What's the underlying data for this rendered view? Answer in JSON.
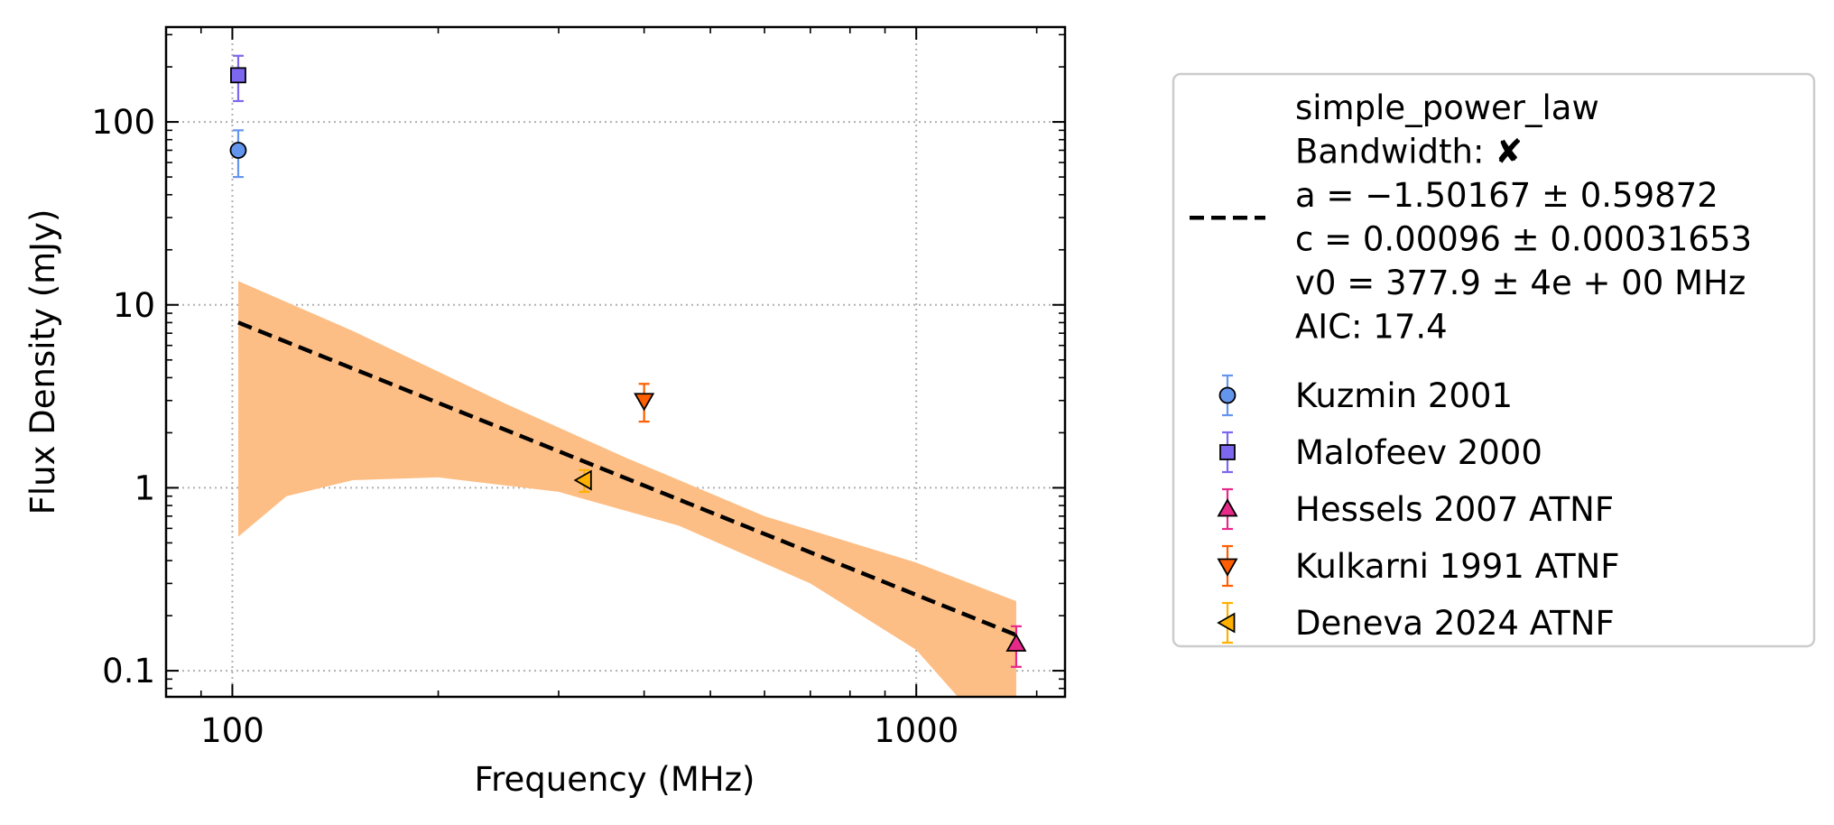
{
  "chart_data": {
    "type": "scatter",
    "xlabel": "Frequency (MHz)",
    "ylabel": "Flux Density (mJy)",
    "xscale": "log",
    "yscale": "log",
    "xlim": [
      80,
      1650
    ],
    "ylim": [
      0.072,
      330
    ],
    "grid": true,
    "legend_placement": "outside-right",
    "x_ticks": [
      {
        "value": 100,
        "label": "100"
      },
      {
        "value": 1000,
        "label": "1000"
      }
    ],
    "y_ticks": [
      {
        "value": 0.1,
        "label": "0.1"
      },
      {
        "value": 1,
        "label": "1"
      },
      {
        "value": 10,
        "label": "10"
      },
      {
        "value": 100,
        "label": "100"
      }
    ],
    "fit": {
      "name": "simple_power_law",
      "line_lines": [
        "simple_power_law",
        "Bandwidth: ✘",
        "a = −1.50167 ± 0.59872",
        "c = 0.00096 ± 0.00031653",
        "v0 = 377.9 ± 4e + 00 MHz",
        "AIC: 17.4"
      ],
      "a": -1.50167,
      "c": 0.00096,
      "v0": 377.9,
      "x_range": [
        102,
        1400
      ],
      "line_color": "#000000",
      "band_color": "#fdbe85",
      "band_upper": [
        [
          102,
          13.5
        ],
        [
          150,
          7.2
        ],
        [
          250,
          2.9
        ],
        [
          377.9,
          1.45
        ],
        [
          600,
          0.7
        ],
        [
          1000,
          0.39
        ],
        [
          1400,
          0.24
        ]
      ],
      "band_lower": [
        [
          102,
          0.54
        ],
        [
          120,
          0.9
        ],
        [
          150,
          1.1
        ],
        [
          200,
          1.14
        ],
        [
          300,
          0.95
        ],
        [
          450,
          0.62
        ],
        [
          700,
          0.3
        ],
        [
          1000,
          0.13
        ],
        [
          1150,
          0.072
        ]
      ]
    },
    "series": [
      {
        "name": "Kuzmin 2001",
        "marker": "circle",
        "color": "#6495ed",
        "edge": "#000000",
        "err_color": "#6495ed",
        "points": [
          {
            "x": 102,
            "y": 70,
            "ylo": 50,
            "yhi": 90
          }
        ]
      },
      {
        "name": "Malofeev 2000",
        "marker": "square",
        "color": "#7b68ee",
        "edge": "#000000",
        "err_color": "#7b68ee",
        "points": [
          {
            "x": 102,
            "y": 180,
            "ylo": 130,
            "yhi": 230
          }
        ]
      },
      {
        "name": "Hessels 2007 ATNF",
        "marker": "triangle-up",
        "color": "#e7298a",
        "edge": "#000000",
        "err_color": "#e7298a",
        "points": [
          {
            "x": 1400,
            "y": 0.14,
            "ylo": 0.105,
            "yhi": 0.175
          }
        ]
      },
      {
        "name": "Kulkarni 1991 ATNF",
        "marker": "triangle-down",
        "color": "#ff5f00",
        "edge": "#000000",
        "err_color": "#ff5f00",
        "points": [
          {
            "x": 400,
            "y": 3.0,
            "ylo": 2.3,
            "yhi": 3.7
          }
        ]
      },
      {
        "name": "Deneva 2024 ATNF",
        "marker": "triangle-left",
        "color": "#ffb000",
        "edge": "#000000",
        "err_color": "#ffb000",
        "points": [
          {
            "x": 327,
            "y": 1.1,
            "ylo": 0.95,
            "yhi": 1.25
          }
        ]
      }
    ]
  }
}
